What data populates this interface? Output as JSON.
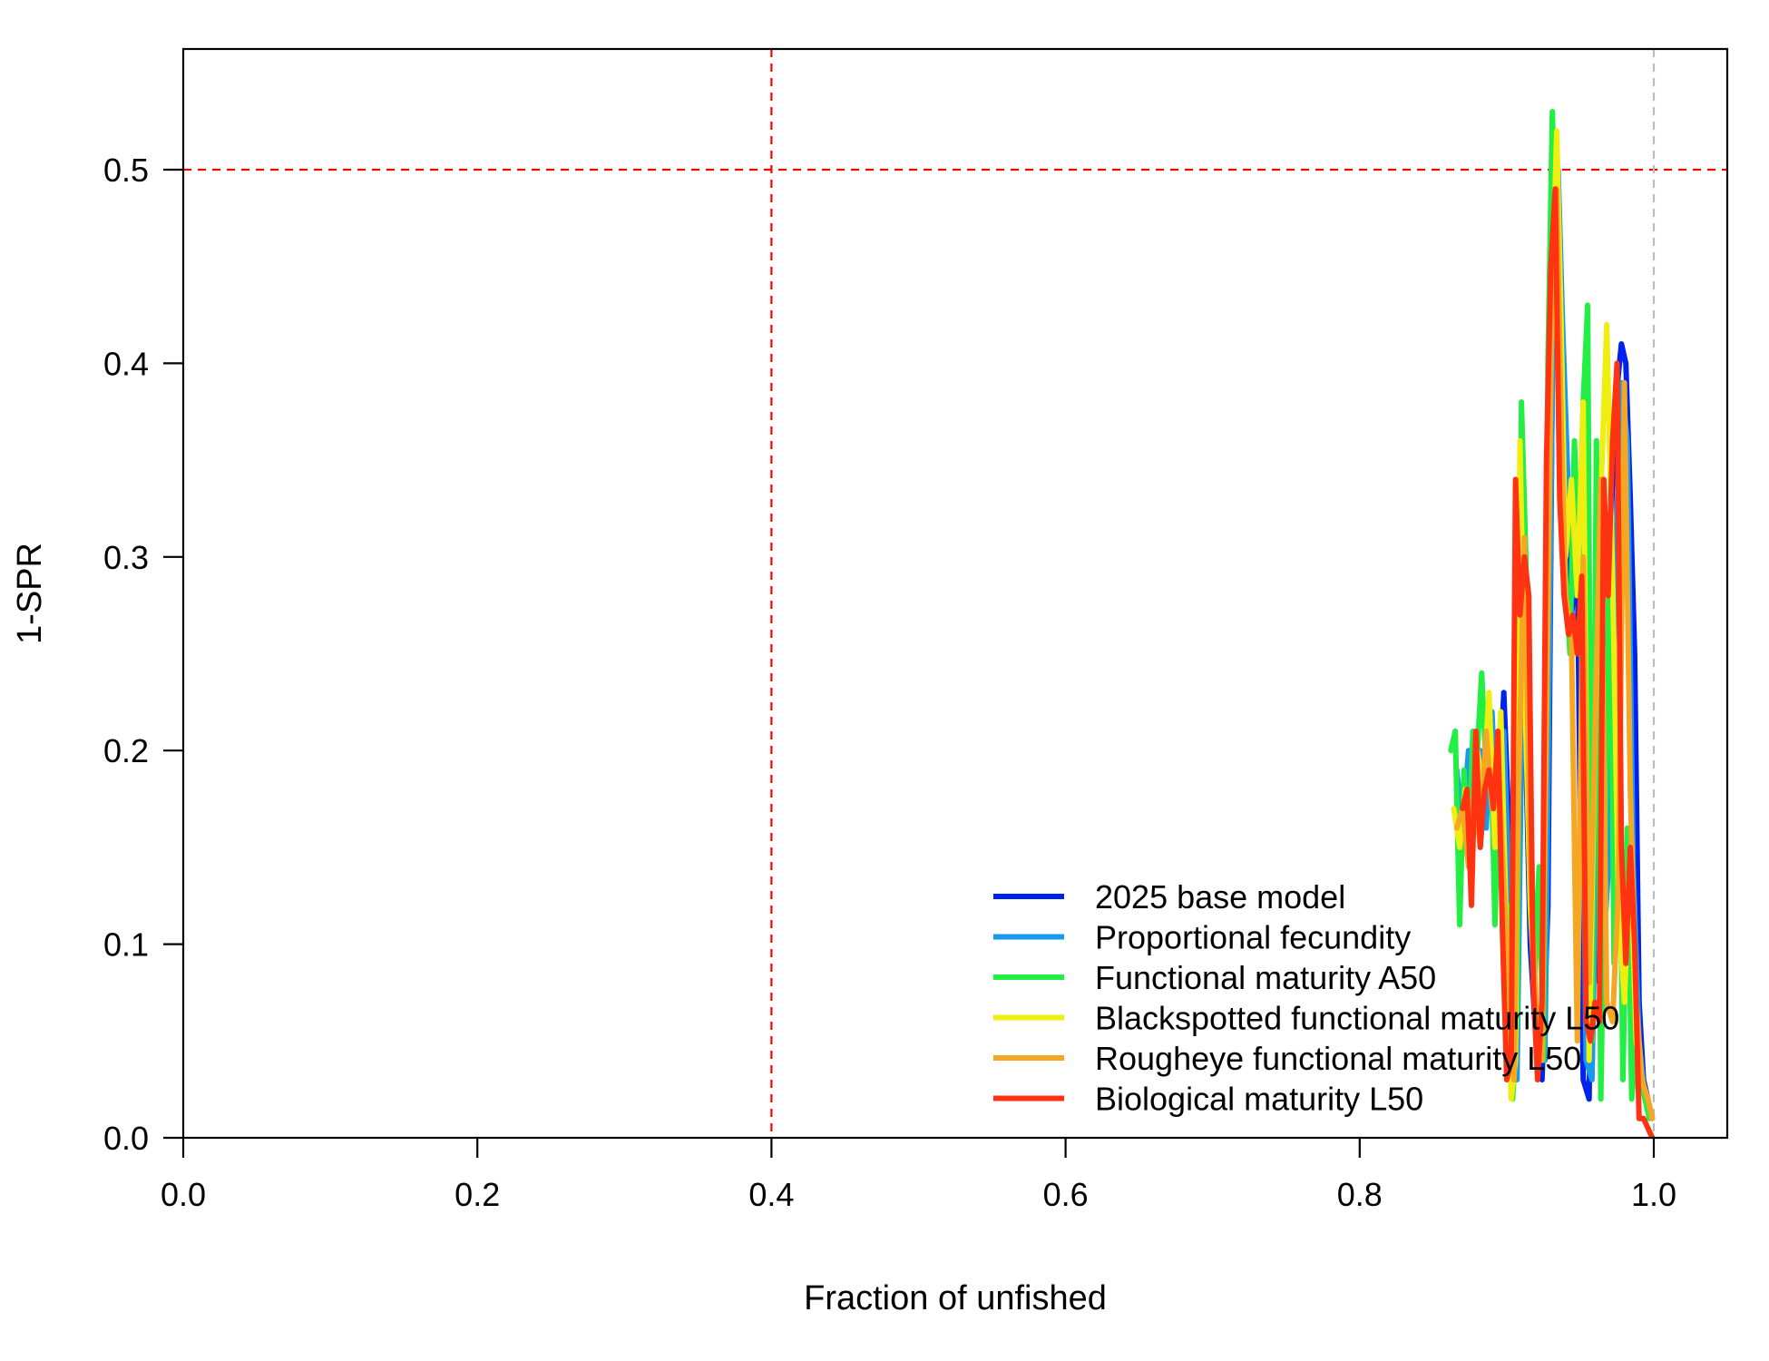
{
  "chart_data": {
    "type": "line",
    "xlabel": "Fraction of unfished",
    "ylabel": "1-SPR",
    "xlim": [
      0.0,
      1.05
    ],
    "ylim": [
      0.0,
      0.56
    ],
    "x_ticks": [
      "0.0",
      "0.2",
      "0.4",
      "0.6",
      "0.8",
      "1.0"
    ],
    "y_ticks": [
      "0.0",
      "0.1",
      "0.2",
      "0.3",
      "0.4",
      "0.5"
    ],
    "reference_lines": [
      {
        "orientation": "vertical",
        "value": 0.4,
        "color": "#ff0000",
        "style": "dashed"
      },
      {
        "orientation": "horizontal",
        "value": 0.5,
        "color": "#ff0000",
        "style": "dashed"
      },
      {
        "orientation": "vertical",
        "value": 1.0,
        "color": "#bbbbbb",
        "style": "dashed"
      }
    ],
    "legend_position": "bottom-right",
    "grid": false,
    "series": [
      {
        "name": "2025 base model",
        "color": "#0022ee",
        "x": [
          0.866,
          0.87,
          0.874,
          0.878,
          0.882,
          0.886,
          0.89,
          0.894,
          0.898,
          0.902,
          0.904,
          0.906,
          0.909,
          0.912,
          0.916,
          0.92,
          0.924,
          0.928,
          0.931,
          0.934,
          0.936,
          0.938,
          0.941,
          0.944,
          0.948,
          0.952,
          0.956,
          0.96,
          0.963,
          0.966,
          0.97,
          0.974,
          0.978,
          0.981,
          0.984,
          0.987,
          0.99,
          0.993,
          0.996,
          0.999
        ],
        "y": [
          0.18,
          0.15,
          0.17,
          0.16,
          0.19,
          0.18,
          0.2,
          0.17,
          0.23,
          0.15,
          0.05,
          0.03,
          0.18,
          0.23,
          0.1,
          0.05,
          0.03,
          0.12,
          0.4,
          0.51,
          0.43,
          0.32,
          0.3,
          0.27,
          0.3,
          0.03,
          0.02,
          0.22,
          0.08,
          0.12,
          0.3,
          0.38,
          0.41,
          0.4,
          0.33,
          0.25,
          0.07,
          0.03,
          0.02,
          0.01
        ]
      },
      {
        "name": "Proportional fecundity",
        "color": "#1899f0",
        "x": [
          0.866,
          0.87,
          0.874,
          0.878,
          0.882,
          0.886,
          0.89,
          0.894,
          0.898,
          0.902,
          0.904,
          0.907,
          0.91,
          0.914,
          0.918,
          0.922,
          0.926,
          0.929,
          0.932,
          0.935,
          0.938,
          0.942,
          0.946,
          0.95,
          0.954,
          0.958,
          0.962,
          0.966,
          0.97,
          0.974,
          0.978,
          0.982,
          0.986,
          0.99,
          0.994,
          0.999
        ],
        "y": [
          0.19,
          0.16,
          0.2,
          0.17,
          0.2,
          0.16,
          0.22,
          0.14,
          0.21,
          0.12,
          0.04,
          0.03,
          0.2,
          0.22,
          0.08,
          0.05,
          0.04,
          0.25,
          0.46,
          0.5,
          0.42,
          0.33,
          0.28,
          0.31,
          0.04,
          0.03,
          0.2,
          0.1,
          0.15,
          0.3,
          0.39,
          0.36,
          0.14,
          0.05,
          0.02,
          0.01
        ]
      },
      {
        "name": "Functional maturity A50",
        "color": "#22ee44",
        "x": [
          0.862,
          0.865,
          0.868,
          0.871,
          0.874,
          0.877,
          0.88,
          0.883,
          0.886,
          0.889,
          0.892,
          0.895,
          0.898,
          0.901,
          0.904,
          0.907,
          0.91,
          0.913,
          0.916,
          0.919,
          0.922,
          0.925,
          0.928,
          0.931,
          0.934,
          0.937,
          0.94,
          0.943,
          0.946,
          0.949,
          0.952,
          0.955,
          0.958,
          0.961,
          0.964,
          0.967,
          0.97,
          0.973,
          0.976,
          0.979,
          0.982,
          0.985,
          0.988,
          0.991,
          0.994,
          0.997
        ],
        "y": [
          0.2,
          0.21,
          0.11,
          0.19,
          0.14,
          0.21,
          0.2,
          0.24,
          0.19,
          0.21,
          0.11,
          0.2,
          0.08,
          0.12,
          0.02,
          0.06,
          0.38,
          0.3,
          0.18,
          0.08,
          0.14,
          0.04,
          0.4,
          0.53,
          0.44,
          0.38,
          0.29,
          0.25,
          0.36,
          0.3,
          0.38,
          0.43,
          0.05,
          0.36,
          0.02,
          0.16,
          0.32,
          0.09,
          0.22,
          0.03,
          0.16,
          0.02,
          0.05,
          0.03,
          0.02,
          0.01
        ]
      },
      {
        "name": "Blackspotted functional maturity L50",
        "color": "#eeee11",
        "x": [
          0.864,
          0.868,
          0.872,
          0.876,
          0.88,
          0.884,
          0.888,
          0.892,
          0.896,
          0.9,
          0.903,
          0.906,
          0.909,
          0.912,
          0.916,
          0.92,
          0.924,
          0.928,
          0.931,
          0.934,
          0.937,
          0.94,
          0.944,
          0.948,
          0.952,
          0.956,
          0.96,
          0.964,
          0.968,
          0.972,
          0.976,
          0.98,
          0.984,
          0.988,
          0.992,
          0.996,
          0.999
        ],
        "y": [
          0.17,
          0.15,
          0.18,
          0.16,
          0.2,
          0.18,
          0.23,
          0.15,
          0.22,
          0.1,
          0.02,
          0.04,
          0.36,
          0.24,
          0.12,
          0.06,
          0.05,
          0.31,
          0.44,
          0.52,
          0.42,
          0.3,
          0.34,
          0.28,
          0.38,
          0.04,
          0.21,
          0.33,
          0.42,
          0.29,
          0.12,
          0.07,
          0.15,
          0.05,
          0.03,
          0.02,
          0.01
        ]
      },
      {
        "name": "Rougheye functional maturity L50",
        "color": "#f5a623",
        "x": [
          0.866,
          0.87,
          0.874,
          0.878,
          0.882,
          0.886,
          0.89,
          0.894,
          0.898,
          0.902,
          0.905,
          0.908,
          0.912,
          0.916,
          0.92,
          0.924,
          0.928,
          0.931,
          0.934,
          0.937,
          0.94,
          0.944,
          0.948,
          0.952,
          0.956,
          0.96,
          0.964,
          0.968,
          0.972,
          0.976,
          0.98,
          0.984,
          0.988,
          0.992,
          0.996,
          0.999
        ],
        "y": [
          0.16,
          0.17,
          0.14,
          0.18,
          0.15,
          0.21,
          0.17,
          0.2,
          0.13,
          0.08,
          0.03,
          0.18,
          0.31,
          0.14,
          0.07,
          0.04,
          0.27,
          0.45,
          0.49,
          0.37,
          0.28,
          0.26,
          0.05,
          0.3,
          0.08,
          0.21,
          0.34,
          0.07,
          0.06,
          0.13,
          0.39,
          0.18,
          0.07,
          0.03,
          0.02,
          0.01
        ]
      },
      {
        "name": "Biological maturity L50",
        "color": "#ff3311",
        "x": [
          0.87,
          0.873,
          0.876,
          0.879,
          0.882,
          0.885,
          0.888,
          0.891,
          0.894,
          0.897,
          0.9,
          0.903,
          0.906,
          0.909,
          0.912,
          0.915,
          0.918,
          0.921,
          0.924,
          0.927,
          0.93,
          0.933,
          0.936,
          0.939,
          0.942,
          0.945,
          0.948,
          0.951,
          0.954,
          0.957,
          0.96,
          0.963,
          0.966,
          0.969,
          0.972,
          0.975,
          0.978,
          0.981,
          0.984,
          0.987,
          0.99,
          0.993,
          0.996,
          0.999
        ],
        "y": [
          0.17,
          0.18,
          0.12,
          0.21,
          0.15,
          0.18,
          0.19,
          0.17,
          0.21,
          0.11,
          0.03,
          0.04,
          0.34,
          0.27,
          0.3,
          0.28,
          0.08,
          0.03,
          0.07,
          0.35,
          0.45,
          0.49,
          0.33,
          0.28,
          0.26,
          0.27,
          0.25,
          0.29,
          0.06,
          0.05,
          0.07,
          0.06,
          0.34,
          0.28,
          0.36,
          0.4,
          0.15,
          0.09,
          0.15,
          0.1,
          0.01,
          0.01,
          0.005,
          0.0
        ]
      }
    ]
  }
}
